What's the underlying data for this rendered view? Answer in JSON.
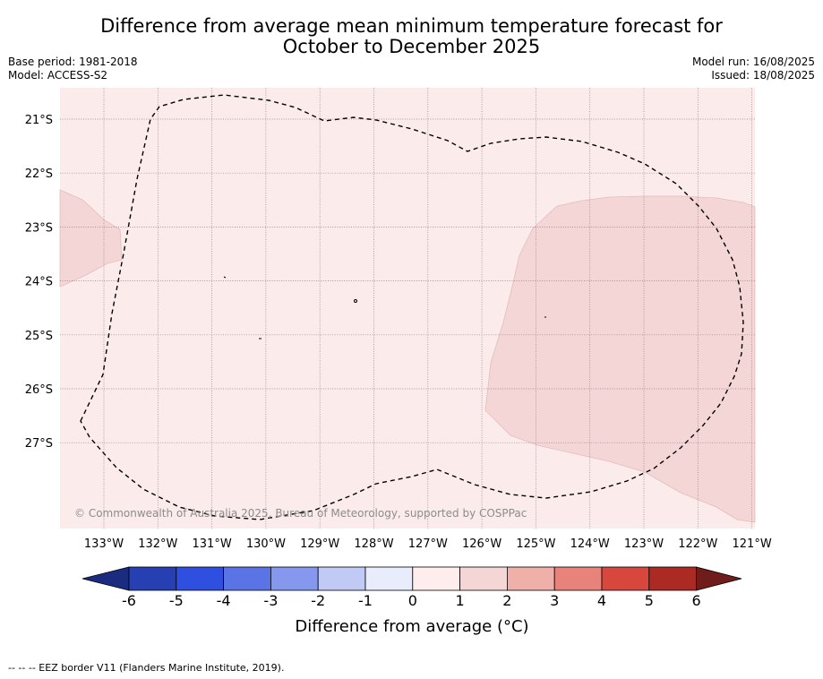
{
  "title_line1": "Difference from average mean minimum temperature forecast for",
  "title_line2": "October to December 2025",
  "base_period": "Base period: 1981-2018",
  "model": "Model: ACCESS-S2",
  "model_run": "Model run: 16/08/2025",
  "issued": "Issued: 18/08/2025",
  "copyright": "© Commonwealth of Australia 2025, Bureau of Meteorology, supported by COSPPac",
  "footer": "--  --  -- EEZ border V11 (Flanders Marine Institute, 2019).",
  "map": {
    "background_color": "#fbeceb",
    "anomaly_color": "#f5d6d6",
    "lon_labels": [
      "133°W",
      "132°W",
      "131°W",
      "130°W",
      "129°W",
      "128°W",
      "127°W",
      "126°W",
      "125°W",
      "124°W",
      "123°W",
      "122°W",
      "121°W"
    ],
    "lat_labels": [
      "21°S",
      "22°S",
      "23°S",
      "24°S",
      "25°S",
      "26°S",
      "27°S"
    ]
  },
  "colorbar": {
    "title": "Difference from average (°C)",
    "tick_labels": [
      "-6",
      "-5",
      "-4",
      "-3",
      "-2",
      "-1",
      "0",
      "1",
      "2",
      "3",
      "4",
      "5",
      "6"
    ],
    "colors": [
      "#1b2b80",
      "#2640b4",
      "#2e4fdf",
      "#5a74e6",
      "#8698ee",
      "#c1c9f5",
      "#e9ecfb",
      "#fdeeed",
      "#f5d6d6",
      "#efb0aa",
      "#e8837c",
      "#d8473e",
      "#ac2a24",
      "#701c1a"
    ]
  }
}
